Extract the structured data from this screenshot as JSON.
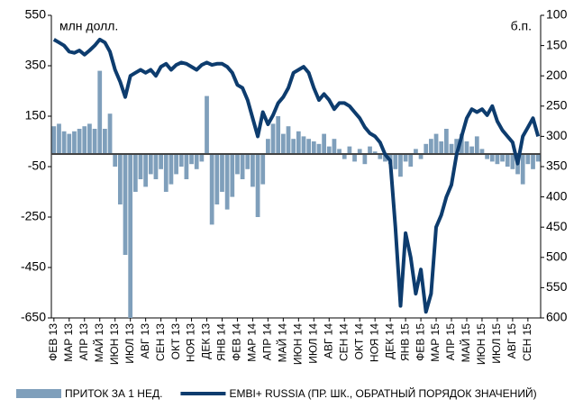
{
  "chart_data": {
    "type": "bar_line",
    "y_label": "млн долл.",
    "y2_label": "б.п.",
    "categories": [
      "ФЕВ 13",
      null,
      null,
      "МАР 13",
      null,
      null,
      "АПР 13",
      null,
      null,
      "МАЙ 13",
      null,
      null,
      "ИЮН 13",
      null,
      null,
      "ИЮЛ 13",
      null,
      null,
      "АВГ 13",
      null,
      null,
      "СЕН 13",
      null,
      null,
      "ОКТ 13",
      null,
      null,
      "НОЯ 13",
      null,
      null,
      "ДЕК 13",
      null,
      null,
      "ЯНВ 14",
      null,
      null,
      "ФЕВ 14",
      null,
      null,
      "МАР 14",
      null,
      null,
      "АПР 14",
      null,
      null,
      "МАЙ 14",
      null,
      null,
      "ИЮН 14",
      null,
      null,
      "ИЮЛ 14",
      null,
      null,
      "АВГ 14",
      null,
      null,
      "СЕН 14",
      null,
      null,
      "ОКТ 14",
      null,
      null,
      "НОЯ 14",
      null,
      null,
      "ДЕК 14",
      null,
      null,
      "ЯНВ 15",
      null,
      null,
      "ФЕВ 15",
      null,
      null,
      "МАР 15",
      null,
      null,
      "АПР 15",
      null,
      null,
      "МАЙ 15",
      null,
      null,
      "ИЮН 15",
      null,
      null,
      "ИЮЛ 15",
      null,
      null,
      "АВГ 15",
      null,
      null,
      "СЕН 15",
      null,
      null
    ],
    "series": [
      {
        "name": "ПРИТОК ЗА 1 НЕД.",
        "type": "bar",
        "color": "#7f9fbb",
        "values": [
          110,
          120,
          90,
          80,
          90,
          100,
          110,
          120,
          100,
          330,
          100,
          160,
          -50,
          -200,
          -400,
          -650,
          -150,
          -100,
          -130,
          -80,
          -100,
          -60,
          -150,
          -120,
          -80,
          -50,
          -100,
          -40,
          -60,
          -30,
          230,
          -280,
          -200,
          -150,
          -220,
          -170,
          -80,
          -100,
          -60,
          -130,
          -250,
          -120,
          60,
          120,
          150,
          80,
          110,
          60,
          90,
          70,
          60,
          50,
          40,
          80,
          30,
          60,
          20,
          -20,
          30,
          -30,
          20,
          -40,
          30,
          10,
          -20,
          -30,
          -40,
          -60,
          -90,
          -30,
          -50,
          20,
          -20,
          40,
          60,
          80,
          50,
          100,
          40,
          60,
          80,
          50,
          30,
          70,
          20,
          -20,
          -30,
          -40,
          -30,
          -50,
          -60,
          -80,
          -120,
          -40,
          -60,
          -30
        ]
      },
      {
        "name": "EMBI+ RUSSIA (ПР. ШК., ОБРАТНЫЙ ПОРЯДОК ЗНАЧЕНИЙ)",
        "type": "line",
        "axis": "y2",
        "color": "#0d3c6e",
        "values": [
          140,
          145,
          150,
          160,
          162,
          158,
          165,
          158,
          150,
          140,
          145,
          160,
          190,
          210,
          235,
          200,
          195,
          190,
          195,
          190,
          200,
          185,
          180,
          190,
          182,
          178,
          180,
          185,
          190,
          182,
          178,
          182,
          180,
          180,
          185,
          195,
          215,
          220,
          240,
          270,
          300,
          260,
          280,
          265,
          245,
          235,
          220,
          195,
          190,
          185,
          195,
          220,
          240,
          230,
          240,
          255,
          245,
          245,
          250,
          260,
          270,
          285,
          295,
          300,
          310,
          330,
          340,
          450,
          580,
          460,
          500,
          560,
          520,
          590,
          560,
          450,
          430,
          400,
          380,
          330,
          300,
          270,
          255,
          260,
          255,
          265,
          250,
          275,
          290,
          300,
          310,
          345,
          300,
          285,
          270,
          300
        ]
      }
    ],
    "ylim": [
      -650,
      550
    ],
    "yticks": [
      -650,
      -450,
      -250,
      -50,
      150,
      350,
      550
    ],
    "y2lim": [
      600,
      100
    ],
    "y2ticks": [
      100,
      150,
      200,
      250,
      300,
      350,
      400,
      450,
      500,
      550,
      600
    ]
  }
}
